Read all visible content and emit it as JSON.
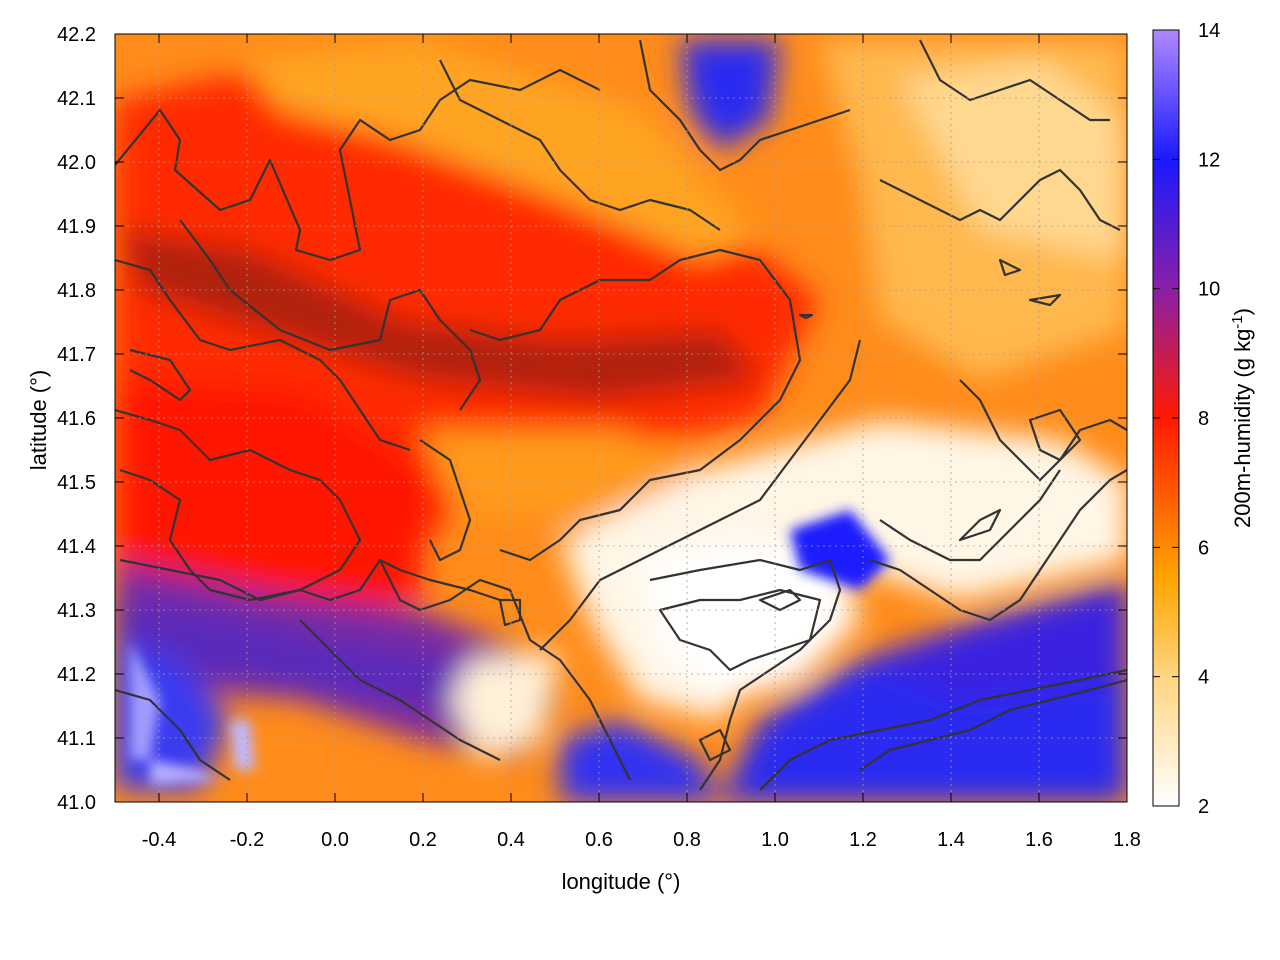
{
  "chart_data": {
    "type": "heatmap",
    "title": "",
    "xlabel": "longitude (°)",
    "ylabel": "latitude (°)",
    "xlim": [
      -0.5,
      1.8
    ],
    "ylim": [
      41.0,
      42.2
    ],
    "x_ticks": [
      "-0.4",
      "-0.2",
      "0.0",
      "0.2",
      "0.4",
      "0.6",
      "0.8",
      "1.0",
      "1.2",
      "1.4",
      "1.6",
      "1.8"
    ],
    "y_ticks": [
      "41.0",
      "41.1",
      "41.2",
      "41.3",
      "41.4",
      "41.5",
      "41.6",
      "41.7",
      "41.8",
      "41.9",
      "42.0",
      "42.1",
      "42.2"
    ],
    "grid": true,
    "colorbar": {
      "label_prefix": "200m-humidity (g kg",
      "label_sup": "-1",
      "label_suffix": ")",
      "range": [
        2,
        14
      ],
      "ticks": [
        "2",
        "4",
        "6",
        "8",
        "10",
        "12",
        "14"
      ],
      "stops": [
        {
          "value": 2,
          "color": "#ffffff"
        },
        {
          "value": 4,
          "color": "#ffd580"
        },
        {
          "value": 5.5,
          "color": "#ffa500"
        },
        {
          "value": 8,
          "color": "#ff1a00"
        },
        {
          "value": 10,
          "color": "#8a1fa8"
        },
        {
          "value": 12,
          "color": "#1a1aff"
        },
        {
          "value": 14,
          "color": "#b088ff"
        }
      ]
    },
    "field_description_values": {
      "sea_southeast_humidity": 12,
      "coastal_dry_core_humidity": 2.5,
      "northwest_inland_humidity": 8,
      "central_band_humidity": 6
    },
    "contour_color": "#333333"
  }
}
